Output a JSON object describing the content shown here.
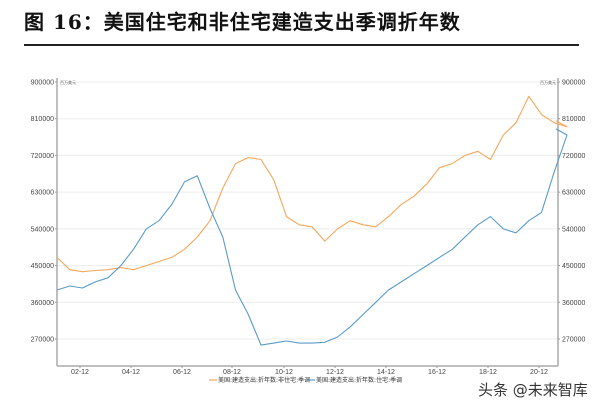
{
  "title": "图 16：美国住宅和非住宅建造支出季调折年数",
  "watermark": "头条 @未来智库",
  "chart_data": {
    "type": "line",
    "title": "美国住宅和非住宅建造支出季调折年数",
    "unit_left": "百万美元",
    "unit_right": "百万美元",
    "xlabel": "",
    "ylabel": "",
    "ylim": [
      200000,
      900000
    ],
    "yticks": [
      270000,
      360000,
      450000,
      540000,
      630000,
      720000,
      810000,
      900000
    ],
    "ytick_labels": [
      "270000",
      "360000",
      "450000",
      "540000",
      "630000",
      "720000",
      "810000",
      "900000"
    ],
    "xtick_labels": [
      "02-12",
      "04-12",
      "06-12",
      "08-12",
      "10-12",
      "12-12",
      "14-12",
      "16-12",
      "18-12",
      "20-12"
    ],
    "grid": true,
    "legend_position": "bottom",
    "x": [
      "01-01",
      "01-07",
      "02-01",
      "02-07",
      "03-01",
      "03-07",
      "04-01",
      "04-07",
      "05-01",
      "05-07",
      "06-01",
      "06-07",
      "07-01",
      "07-07",
      "08-01",
      "08-07",
      "09-01",
      "09-07",
      "10-01",
      "10-07",
      "11-01",
      "11-07",
      "12-01",
      "12-07",
      "13-01",
      "13-07",
      "14-01",
      "14-07",
      "15-01",
      "15-07",
      "16-01",
      "16-07",
      "17-01",
      "17-07",
      "18-01",
      "18-07",
      "19-01",
      "19-07",
      "20-01",
      "20-07",
      "21-01",
      "21-04"
    ],
    "series": [
      {
        "name": "美国:建造支出:折年数:非住宅:季调",
        "color": "#f5a75c",
        "values": [
          470000,
          440000,
          435000,
          438000,
          440000,
          445000,
          440000,
          450000,
          460000,
          470000,
          490000,
          520000,
          560000,
          640000,
          700000,
          715000,
          710000,
          660000,
          570000,
          550000,
          545000,
          510000,
          540000,
          560000,
          550000,
          545000,
          570000,
          600000,
          620000,
          650000,
          690000,
          700000,
          720000,
          730000,
          710000,
          770000,
          800000,
          865000,
          820000,
          800000,
          790000,
          805000
        ]
      },
      {
        "name": "美国:建造支出:折年数:住宅:季调",
        "color": "#5b9bc8",
        "values": [
          390000,
          400000,
          395000,
          410000,
          420000,
          450000,
          490000,
          540000,
          560000,
          600000,
          655000,
          670000,
          590000,
          520000,
          390000,
          330000,
          255000,
          260000,
          265000,
          260000,
          260000,
          262000,
          275000,
          300000,
          330000,
          360000,
          390000,
          410000,
          430000,
          450000,
          470000,
          490000,
          520000,
          550000,
          570000,
          540000,
          530000,
          560000,
          580000,
          680000,
          770000,
          785000
        ]
      }
    ]
  }
}
